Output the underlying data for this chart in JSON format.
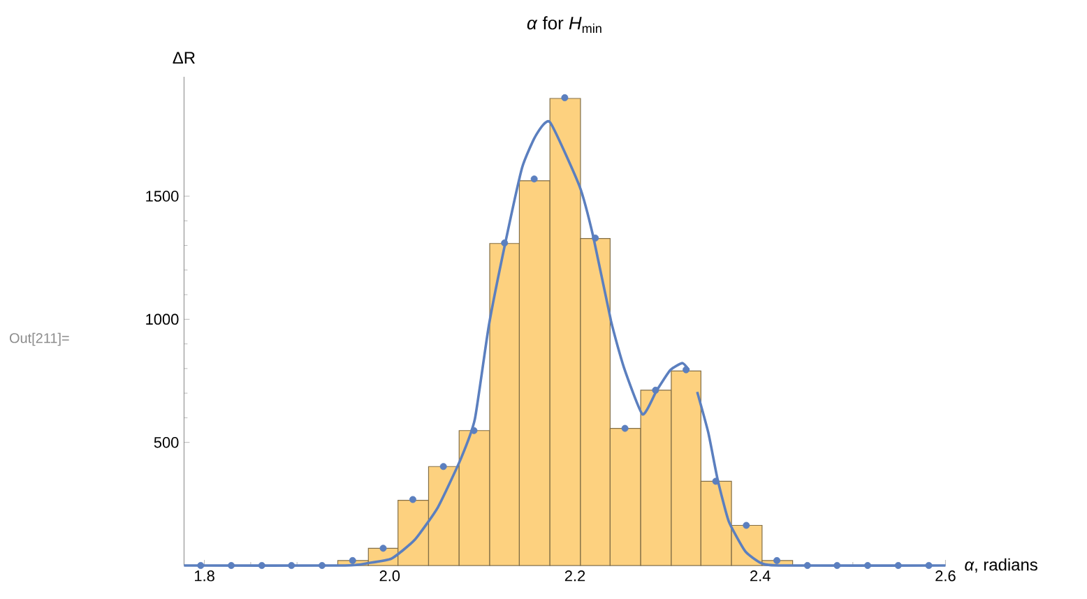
{
  "chart_data": {
    "type": "histogram",
    "title": "*α* for *H*$_{min}$",
    "xlabel": "*α*, radians",
    "ylabel": "ΔR",
    "annotations": [
      "Out[211]="
    ],
    "xlim": [
      1.778,
      2.6
    ],
    "ylim": [
      0,
      1985
    ],
    "xticks": [
      1.8,
      {
        "value": 2.0,
        "label": "2.0"
      },
      2.2,
      2.4,
      2.6
    ],
    "yticks": [
      500,
      1000,
      1500
    ],
    "grid": false,
    "bins": [
      1.944,
      1.977,
      2.009,
      2.042,
      2.075,
      2.108,
      2.14,
      2.173,
      2.206,
      2.238,
      2.271,
      2.304,
      2.336,
      2.369,
      2.402,
      2.435
    ],
    "values": [
      20,
      70,
      265,
      402,
      548,
      1308,
      1563,
      1897,
      1328,
      557,
      712,
      790,
      342,
      163,
      20
    ],
    "color": "#fdd17f",
    "series": [
      {
        "type": "line",
        "color": "#5b7fbf",
        "x": [
          1.778,
          1.952,
          1.977,
          2.002,
          2.027,
          2.052,
          2.077,
          2.092,
          2.107,
          2.125,
          2.143,
          2.158,
          2.173,
          2.205,
          2.22,
          2.239,
          2.253,
          2.273,
          2.288,
          2.303,
          2.316,
          2.323,
          2.328,
          2.332,
          2.344,
          2.354,
          2.366,
          2.384,
          2.401,
          2.42,
          2.6
        ],
        "values": [
          0,
          0,
          10,
          28,
          104,
          236,
          435,
          595,
          973,
          1313,
          1616,
          1748,
          1801,
          1540,
          1332,
          992,
          803,
          614,
          709,
          794,
          822,
          794,
          null,
          705,
          539,
          350,
          180,
          57,
          10,
          0,
          0
        ]
      },
      {
        "type": "scatter",
        "color": "#5b7fbf",
        "x": [
          1.796,
          1.829,
          1.862,
          1.894,
          1.927,
          1.96,
          1.993,
          2.025,
          2.058,
          2.091,
          2.124,
          2.156,
          2.189,
          2.222,
          2.254,
          2.287,
          2.32,
          2.352,
          2.385,
          2.418,
          2.451,
          2.483,
          2.516,
          2.549,
          2.582
        ],
        "values": [
          0,
          0,
          0,
          0,
          0,
          20,
          70,
          268,
          402,
          548,
          1310,
          1570,
          1900,
          1330,
          557,
          712,
          795,
          342,
          163,
          20,
          0,
          0,
          0,
          0,
          0
        ]
      }
    ]
  }
}
